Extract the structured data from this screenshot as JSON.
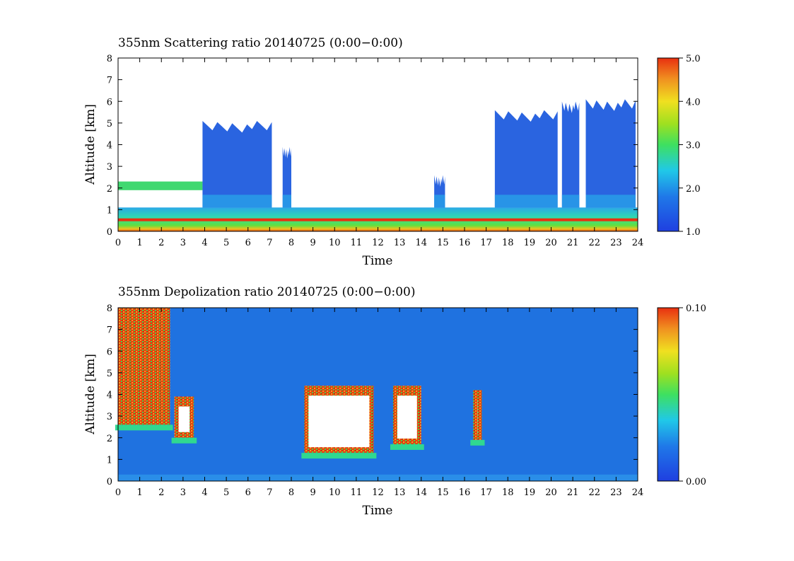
{
  "chart_data": [
    {
      "type": "heatmap",
      "title": "355nm Scattering ratio  20140725 (0:00−0:00)",
      "xlabel": "Time",
      "ylabel": "Altitude [km]",
      "xlim": [
        0,
        24
      ],
      "ylim": [
        0,
        8
      ],
      "x_ticks": [
        "0",
        "1",
        "2",
        "3",
        "4",
        "5",
        "6",
        "7",
        "8",
        "9",
        "10",
        "11",
        "12",
        "13",
        "14",
        "15",
        "16",
        "17",
        "18",
        "19",
        "20",
        "21",
        "22",
        "23",
        "24"
      ],
      "y_ticks": [
        "0",
        "1",
        "2",
        "3",
        "4",
        "5",
        "6",
        "7",
        "8"
      ],
      "colorbar": {
        "min": 1.0,
        "max": 5.0,
        "ticks": [
          "1.0",
          "2.0",
          "3.0",
          "4.0",
          "5.0"
        ]
      },
      "cloud_columns": [
        {
          "t0": 3.9,
          "t1": 7.1,
          "top": 4.8
        },
        {
          "t0": 7.6,
          "t1": 8.0,
          "top": 3.6
        },
        {
          "t0": 14.6,
          "t1": 15.1,
          "top": 2.3
        },
        {
          "t0": 17.4,
          "t1": 20.3,
          "top": 5.3
        },
        {
          "t0": 20.5,
          "t1": 21.3,
          "top": 5.7
        },
        {
          "t0": 21.6,
          "t1": 23.9,
          "top": 5.8
        }
      ],
      "layer_features": {
        "surface_layer_top_km": 0.5,
        "boundary_layer_top_km": 1.1,
        "low_cloud_km": [
          1.9,
          2.3
        ]
      }
    },
    {
      "type": "heatmap",
      "title": "355nm Depolization ratio  20140725 (0:00−0:00)",
      "xlabel": "Time",
      "ylabel": "Altitude [km]",
      "xlim": [
        0,
        24
      ],
      "ylim": [
        0,
        8
      ],
      "x_ticks": [
        "0",
        "1",
        "2",
        "3",
        "4",
        "5",
        "6",
        "7",
        "8",
        "9",
        "10",
        "11",
        "12",
        "13",
        "14",
        "15",
        "16",
        "17",
        "18",
        "19",
        "20",
        "21",
        "22",
        "23",
        "24"
      ],
      "y_ticks": [
        "0",
        "1",
        "2",
        "3",
        "4",
        "5",
        "6",
        "7",
        "8"
      ],
      "colorbar": {
        "min": 0.0,
        "max": 0.1,
        "ticks": [
          "0.00",
          "0.10"
        ]
      },
      "high_depol_regions": [
        {
          "t0": 0.0,
          "t1": 2.4,
          "bottom": 2.6,
          "top": 8.0
        },
        {
          "t0": 2.6,
          "t1": 3.5,
          "bottom": 2.0,
          "top": 3.9
        },
        {
          "t0": 8.6,
          "t1": 11.8,
          "bottom": 1.3,
          "top": 4.4
        },
        {
          "t0": 12.7,
          "t1": 14.0,
          "bottom": 1.7,
          "top": 4.4
        },
        {
          "t0": 16.4,
          "t1": 16.8,
          "bottom": 1.9,
          "top": 4.2
        }
      ]
    }
  ]
}
